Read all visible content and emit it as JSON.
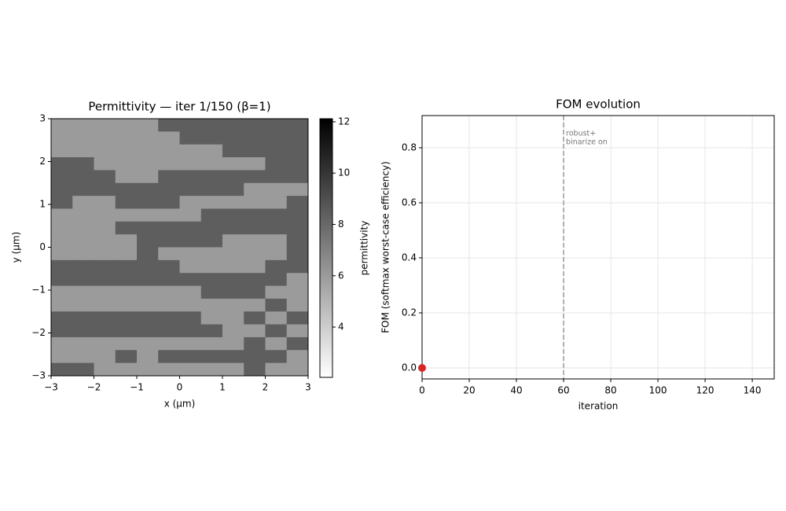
{
  "chart_data": [
    {
      "type": "heatmap",
      "title": "Permittivity — iter 1/150  (β=1)",
      "xlabel": "x (µm)",
      "ylabel": "y (µm)",
      "xlim": [
        -3,
        3
      ],
      "ylim": [
        -3,
        3
      ],
      "xticks": [
        {
          "value": -3,
          "label": "−3"
        },
        {
          "value": -2,
          "label": "−2"
        },
        {
          "value": -1,
          "label": "−1"
        },
        0,
        1,
        2,
        3
      ],
      "yticks": [
        {
          "value": -3,
          "label": "−3"
        },
        {
          "value": -2,
          "label": "−2"
        },
        {
          "value": -1,
          "label": "−1"
        },
        0,
        1,
        2,
        3
      ],
      "colormap": "gray_r",
      "colorbar": {
        "label": "permittivity",
        "lim": [
          2.04,
          12.12
        ],
        "ticks": [
          4,
          6,
          8,
          10,
          12
        ]
      },
      "z": [
        [
          6,
          6,
          6,
          6,
          6,
          8.4,
          8.4,
          8.4,
          8.4,
          8.4,
          8.4,
          8.4
        ],
        [
          6,
          6,
          6,
          6,
          6,
          6,
          8.4,
          8.4,
          8.4,
          8.4,
          8.4,
          8.4
        ],
        [
          6,
          6,
          6,
          6,
          6,
          6,
          6,
          6,
          8.4,
          8.4,
          8.4,
          8.4
        ],
        [
          8.4,
          8.4,
          6,
          6,
          6,
          6,
          6,
          6,
          6,
          6,
          8.4,
          8.4
        ],
        [
          8.4,
          8.4,
          8.4,
          6,
          6,
          8.4,
          8.4,
          8.4,
          8.4,
          8.4,
          8.4,
          8.4
        ],
        [
          8.4,
          8.4,
          8.4,
          8.4,
          8.4,
          8.4,
          8.4,
          8.4,
          8.4,
          6,
          6,
          6
        ],
        [
          8.4,
          6,
          6,
          8.4,
          8.4,
          8.4,
          6,
          6,
          6,
          6,
          6,
          8.4
        ],
        [
          6,
          6,
          6,
          6,
          6,
          6,
          6,
          8.4,
          8.4,
          8.4,
          8.4,
          8.4
        ],
        [
          6,
          6,
          6,
          8.4,
          8.4,
          8.4,
          8.4,
          8.4,
          8.4,
          8.4,
          8.4,
          8.4
        ],
        [
          6,
          6,
          6,
          6,
          8.4,
          8.4,
          8.4,
          8.4,
          6,
          6,
          6,
          8.4
        ],
        [
          6,
          6,
          6,
          6,
          8.4,
          6,
          6,
          6,
          6,
          6,
          6,
          8.4
        ],
        [
          8.4,
          8.4,
          8.4,
          8.4,
          8.4,
          8.4,
          6,
          6,
          6,
          6,
          8.4,
          8.4
        ],
        [
          8.4,
          8.4,
          8.4,
          8.4,
          8.4,
          8.4,
          8.4,
          8.4,
          8.4,
          8.4,
          8.4,
          6
        ],
        [
          6,
          6,
          6,
          6,
          6,
          6,
          6,
          8.4,
          8.4,
          8.4,
          6,
          6
        ],
        [
          6,
          6,
          6,
          6,
          6,
          6,
          6,
          6,
          6,
          6,
          8.4,
          6
        ],
        [
          8.4,
          8.4,
          8.4,
          8.4,
          8.4,
          8.4,
          8.4,
          6,
          6,
          8.4,
          6,
          8.4
        ],
        [
          8.4,
          8.4,
          8.4,
          8.4,
          8.4,
          8.4,
          8.4,
          8.4,
          6,
          6,
          8.4,
          6
        ],
        [
          6,
          6,
          6,
          6,
          6,
          6,
          6,
          6,
          6,
          8.4,
          6,
          8.4
        ],
        [
          6,
          6,
          6,
          8.4,
          6,
          8.4,
          8.4,
          8.4,
          8.4,
          8.4,
          8.4,
          6
        ],
        [
          8.4,
          8.4,
          6,
          6,
          6,
          6,
          6,
          6,
          6,
          8.4,
          6,
          6
        ]
      ]
    },
    {
      "type": "line",
      "title": "FOM evolution",
      "xlabel": "iteration",
      "ylabel": "FOM (softmax worst-case efficiency)",
      "x": [
        0
      ],
      "values": [
        0
      ],
      "color": "#d62728",
      "xlim": [
        0,
        149.3
      ],
      "ylim": [
        -0.04,
        0.917
      ],
      "xticks": [
        0,
        20,
        40,
        60,
        80,
        100,
        120,
        140
      ],
      "yticks": [
        {
          "value": 0,
          "label": "0.0"
        },
        0.2,
        0.4,
        0.6,
        0.8
      ],
      "grid": true,
      "annotation": {
        "x": 60,
        "lines": [
          "robust+",
          "binarize on"
        ]
      }
    }
  ]
}
